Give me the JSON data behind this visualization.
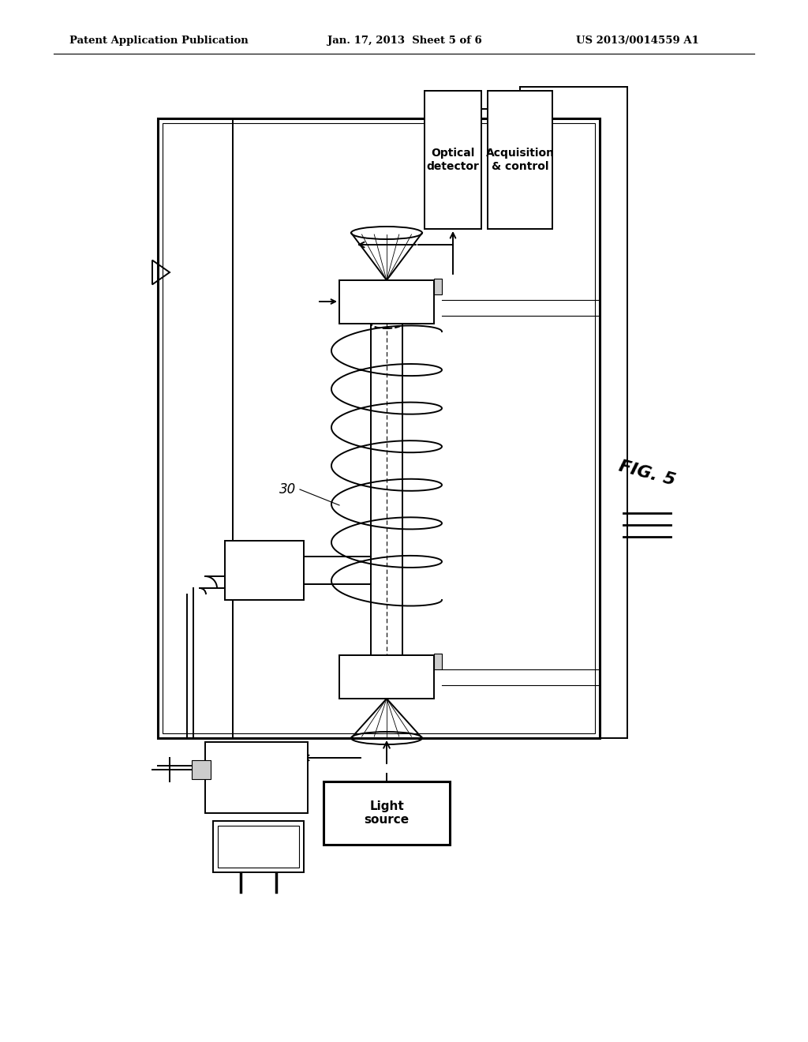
{
  "bg_color": "#ffffff",
  "header_left": "Patent Application Publication",
  "header_center": "Jan. 17, 2013  Sheet 5 of 6",
  "header_right": "US 2013/0014559 A1",
  "fig_label": "FIG. 5",
  "label_30": "30",
  "label_optical": "Optical\ndetector",
  "label_acquisition": "Acquisition\n& control",
  "label_light": "Light\nsource",
  "black": "#000000",
  "gray_light": "#cccccc",
  "lw_thin": 0.8,
  "lw_med": 1.4,
  "lw_thick": 2.2
}
